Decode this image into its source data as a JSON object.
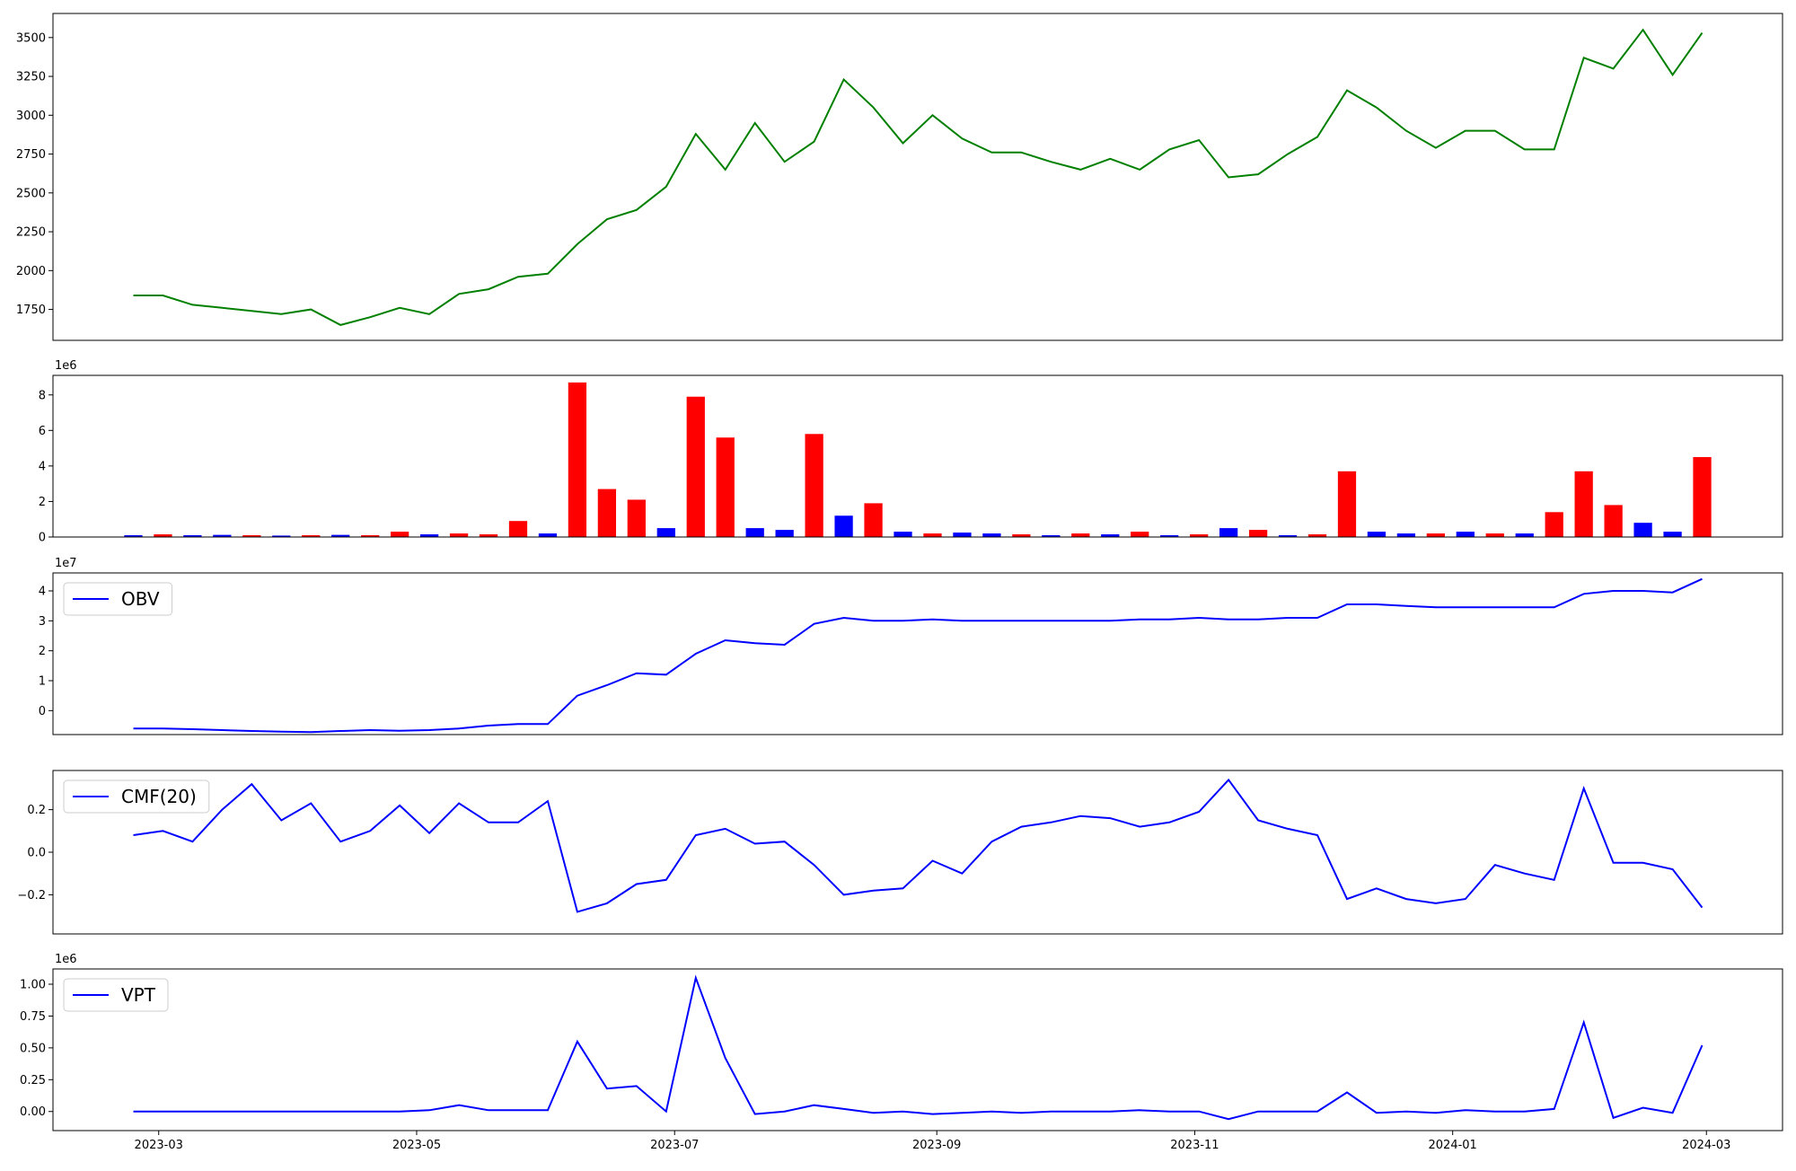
{
  "chart_data": [
    {
      "type": "line",
      "color": "green",
      "x": [
        "2023-02-23",
        "2023-03-02",
        "2023-03-09",
        "2023-03-16",
        "2023-03-23",
        "2023-03-30",
        "2023-04-06",
        "2023-04-13",
        "2023-04-20",
        "2023-04-27",
        "2023-05-04",
        "2023-05-11",
        "2023-05-18",
        "2023-05-25",
        "2023-06-01",
        "2023-06-08",
        "2023-06-15",
        "2023-06-22",
        "2023-06-29",
        "2023-07-06",
        "2023-07-13",
        "2023-07-20",
        "2023-07-27",
        "2023-08-03",
        "2023-08-10",
        "2023-08-17",
        "2023-08-24",
        "2023-08-31",
        "2023-09-07",
        "2023-09-14",
        "2023-09-21",
        "2023-09-28",
        "2023-10-05",
        "2023-10-12",
        "2023-10-19",
        "2023-10-26",
        "2023-11-02",
        "2023-11-09",
        "2023-11-16",
        "2023-11-23",
        "2023-11-30",
        "2023-12-07",
        "2023-12-14",
        "2023-12-21",
        "2023-12-28",
        "2024-01-04",
        "2024-01-11",
        "2024-01-18",
        "2024-01-25",
        "2024-02-01",
        "2024-02-08",
        "2024-02-15",
        "2024-02-22",
        "2024-02-29"
      ],
      "values": [
        1840,
        1840,
        1780,
        1760,
        1740,
        1720,
        1750,
        1650,
        1700,
        1760,
        1720,
        1850,
        1880,
        1960,
        1980,
        2170,
        2330,
        2390,
        2540,
        2880,
        2650,
        2950,
        2700,
        2830,
        3230,
        3050,
        2820,
        3000,
        2850,
        2760,
        2760,
        2700,
        2650,
        2720,
        2650,
        2780,
        2840,
        2600,
        2620,
        2750,
        2860,
        3160,
        3050,
        2900,
        2790,
        2900,
        2900,
        2780,
        2780,
        3370,
        3300,
        3550,
        3260,
        3530
      ],
      "xlim": [
        "2023-02-04",
        "2024-03-19"
      ],
      "ylim": [
        1551,
        3655
      ],
      "yticks": [
        1750,
        2000,
        2250,
        2500,
        2750,
        3000,
        3250,
        3500
      ]
    },
    {
      "type": "bar",
      "offset_text": "1e6",
      "x": [
        "2023-02-23",
        "2023-03-02",
        "2023-03-09",
        "2023-03-16",
        "2023-03-23",
        "2023-03-30",
        "2023-04-06",
        "2023-04-13",
        "2023-04-20",
        "2023-04-27",
        "2023-05-04",
        "2023-05-11",
        "2023-05-18",
        "2023-05-25",
        "2023-06-01",
        "2023-06-08",
        "2023-06-15",
        "2023-06-22",
        "2023-06-29",
        "2023-07-06",
        "2023-07-13",
        "2023-07-20",
        "2023-07-27",
        "2023-08-03",
        "2023-08-10",
        "2023-08-17",
        "2023-08-24",
        "2023-08-31",
        "2023-09-07",
        "2023-09-14",
        "2023-09-21",
        "2023-09-28",
        "2023-10-05",
        "2023-10-12",
        "2023-10-19",
        "2023-10-26",
        "2023-11-02",
        "2023-11-09",
        "2023-11-16",
        "2023-11-23",
        "2023-11-30",
        "2023-12-07",
        "2023-12-14",
        "2023-12-21",
        "2023-12-28",
        "2024-01-04",
        "2024-01-11",
        "2024-01-18",
        "2024-01-25",
        "2024-02-01",
        "2024-02-08",
        "2024-02-15",
        "2024-02-22",
        "2024-02-29"
      ],
      "values": [
        0.1,
        0.15,
        0.1,
        0.12,
        0.1,
        0.08,
        0.1,
        0.12,
        0.1,
        0.3,
        0.15,
        0.2,
        0.15,
        0.9,
        0.2,
        8.7,
        2.7,
        2.1,
        0.5,
        7.9,
        5.6,
        0.5,
        0.4,
        5.8,
        1.2,
        1.9,
        0.3,
        0.2,
        0.25,
        0.2,
        0.15,
        0.1,
        0.2,
        0.15,
        0.3,
        0.1,
        0.15,
        0.5,
        0.4,
        0.1,
        0.15,
        3.7,
        0.3,
        0.2,
        0.2,
        0.3,
        0.2,
        0.2,
        1.4,
        3.7,
        1.8,
        0.8,
        0.3,
        4.5
      ],
      "colors": [
        "blue",
        "red",
        "blue",
        "blue",
        "red",
        "blue",
        "red",
        "blue",
        "red",
        "red",
        "blue",
        "red",
        "red",
        "red",
        "blue",
        "red",
        "red",
        "red",
        "blue",
        "red",
        "red",
        "blue",
        "blue",
        "red",
        "blue",
        "red",
        "blue",
        "red",
        "blue",
        "blue",
        "red",
        "blue",
        "red",
        "blue",
        "red",
        "blue",
        "red",
        "blue",
        "red",
        "blue",
        "red",
        "red",
        "blue",
        "blue",
        "red",
        "blue",
        "red",
        "blue",
        "red",
        "red",
        "red",
        "blue",
        "blue",
        "red"
      ],
      "xlim": [
        "2023-02-04",
        "2024-03-19"
      ],
      "ylim": [
        0,
        9.1
      ],
      "yticks": [
        0,
        2,
        4,
        6,
        8
      ]
    },
    {
      "type": "line",
      "offset_text": "1e7",
      "legend": "upper left",
      "x": [
        "2023-02-23",
        "2023-03-02",
        "2023-03-09",
        "2023-03-16",
        "2023-03-23",
        "2023-03-30",
        "2023-04-06",
        "2023-04-13",
        "2023-04-20",
        "2023-04-27",
        "2023-05-04",
        "2023-05-11",
        "2023-05-18",
        "2023-05-25",
        "2023-06-01",
        "2023-06-08",
        "2023-06-15",
        "2023-06-22",
        "2023-06-29",
        "2023-07-06",
        "2023-07-13",
        "2023-07-20",
        "2023-07-27",
        "2023-08-03",
        "2023-08-10",
        "2023-08-17",
        "2023-08-24",
        "2023-08-31",
        "2023-09-07",
        "2023-09-14",
        "2023-09-21",
        "2023-09-28",
        "2023-10-05",
        "2023-10-12",
        "2023-10-19",
        "2023-10-26",
        "2023-11-02",
        "2023-11-09",
        "2023-11-16",
        "2023-11-23",
        "2023-11-30",
        "2023-12-07",
        "2023-12-14",
        "2023-12-21",
        "2023-12-28",
        "2024-01-04",
        "2024-01-11",
        "2024-01-18",
        "2024-01-25",
        "2024-02-01",
        "2024-02-08",
        "2024-02-15",
        "2024-02-22",
        "2024-02-29"
      ],
      "series": [
        {
          "name": "OBV",
          "color": "blue",
          "values": [
            -0.6,
            -0.6,
            -0.62,
            -0.65,
            -0.68,
            -0.7,
            -0.72,
            -0.68,
            -0.65,
            -0.67,
            -0.65,
            -0.6,
            -0.5,
            -0.45,
            -0.45,
            0.5,
            0.85,
            1.25,
            1.2,
            1.9,
            2.35,
            2.25,
            2.2,
            2.9,
            3.1,
            3.0,
            3.0,
            3.05,
            3.0,
            3.0,
            3.0,
            3.0,
            3.0,
            3.0,
            3.05,
            3.05,
            3.1,
            3.05,
            3.05,
            3.1,
            3.1,
            3.55,
            3.55,
            3.5,
            3.45,
            3.45,
            3.45,
            3.45,
            3.45,
            3.9,
            4.0,
            4.0,
            3.95,
            4.4
          ]
        }
      ],
      "xlim": [
        "2023-02-04",
        "2024-03-19"
      ],
      "ylim": [
        -0.8,
        4.6
      ],
      "yticks": [
        0,
        1,
        2,
        3,
        4
      ]
    },
    {
      "type": "line",
      "legend": "upper left",
      "x": [
        "2023-02-23",
        "2023-03-02",
        "2023-03-09",
        "2023-03-16",
        "2023-03-23",
        "2023-03-30",
        "2023-04-06",
        "2023-04-13",
        "2023-04-20",
        "2023-04-27",
        "2023-05-04",
        "2023-05-11",
        "2023-05-18",
        "2023-05-25",
        "2023-06-01",
        "2023-06-08",
        "2023-06-15",
        "2023-06-22",
        "2023-06-29",
        "2023-07-06",
        "2023-07-13",
        "2023-07-20",
        "2023-07-27",
        "2023-08-03",
        "2023-08-10",
        "2023-08-17",
        "2023-08-24",
        "2023-08-31",
        "2023-09-07",
        "2023-09-14",
        "2023-09-21",
        "2023-09-28",
        "2023-10-05",
        "2023-10-12",
        "2023-10-19",
        "2023-10-26",
        "2023-11-02",
        "2023-11-09",
        "2023-11-16",
        "2023-11-23",
        "2023-11-30",
        "2023-12-07",
        "2023-12-14",
        "2023-12-21",
        "2023-12-28",
        "2024-01-04",
        "2024-01-11",
        "2024-01-18",
        "2024-01-25",
        "2024-02-01",
        "2024-02-08",
        "2024-02-15",
        "2024-02-22",
        "2024-02-29"
      ],
      "series": [
        {
          "name": "CMF(20)",
          "color": "blue",
          "values": [
            0.08,
            0.1,
            0.05,
            0.2,
            0.32,
            0.15,
            0.23,
            0.05,
            0.1,
            0.22,
            0.09,
            0.23,
            0.14,
            0.14,
            0.24,
            -0.28,
            -0.24,
            -0.15,
            -0.13,
            0.08,
            0.11,
            0.04,
            0.05,
            -0.06,
            -0.2,
            -0.18,
            -0.17,
            -0.04,
            -0.1,
            0.05,
            0.12,
            0.14,
            0.17,
            0.16,
            0.12,
            0.14,
            0.19,
            0.34,
            0.15,
            0.11,
            0.08,
            -0.22,
            -0.17,
            -0.22,
            -0.24,
            -0.22,
            -0.06,
            -0.1,
            -0.13,
            0.3,
            -0.05,
            -0.05,
            -0.08,
            -0.26
          ]
        }
      ],
      "xlim": [
        "2023-02-04",
        "2024-03-19"
      ],
      "ylim": [
        -0.384,
        0.384
      ],
      "yticks": [
        {
          "value": -0.2,
          "label": "−0.2"
        },
        {
          "value": 0,
          "label": "0.0"
        },
        0.2
      ]
    },
    {
      "type": "line",
      "offset_text": "1e6",
      "legend": "upper left",
      "x": [
        "2023-02-23",
        "2023-03-02",
        "2023-03-09",
        "2023-03-16",
        "2023-03-23",
        "2023-03-30",
        "2023-04-06",
        "2023-04-13",
        "2023-04-20",
        "2023-04-27",
        "2023-05-04",
        "2023-05-11",
        "2023-05-18",
        "2023-05-25",
        "2023-06-01",
        "2023-06-08",
        "2023-06-15",
        "2023-06-22",
        "2023-06-29",
        "2023-07-06",
        "2023-07-13",
        "2023-07-20",
        "2023-07-27",
        "2023-08-03",
        "2023-08-10",
        "2023-08-17",
        "2023-08-24",
        "2023-08-31",
        "2023-09-07",
        "2023-09-14",
        "2023-09-21",
        "2023-09-28",
        "2023-10-05",
        "2023-10-12",
        "2023-10-19",
        "2023-10-26",
        "2023-11-02",
        "2023-11-09",
        "2023-11-16",
        "2023-11-23",
        "2023-11-30",
        "2023-12-07",
        "2023-12-14",
        "2023-12-21",
        "2023-12-28",
        "2024-01-04",
        "2024-01-11",
        "2024-01-18",
        "2024-01-25",
        "2024-02-01",
        "2024-02-08",
        "2024-02-15",
        "2024-02-22",
        "2024-02-29"
      ],
      "series": [
        {
          "name": "VPT",
          "color": "blue",
          "values": [
            0,
            0,
            0,
            0,
            0,
            0,
            0,
            0,
            0,
            0,
            0.01,
            0.05,
            0.01,
            0.01,
            0.01,
            0.55,
            0.18,
            0.2,
            0,
            1.05,
            0.42,
            -0.02,
            0,
            0.05,
            0.02,
            -0.01,
            0,
            -0.02,
            -0.01,
            0,
            -0.01,
            0,
            0,
            0,
            0.01,
            0,
            0,
            -0.06,
            0,
            0,
            0,
            0.15,
            -0.01,
            0,
            -0.01,
            0.01,
            0,
            0,
            0.02,
            0.7,
            -0.05,
            0.03,
            -0.01,
            0.52
          ]
        }
      ],
      "xlim": [
        "2023-02-04",
        "2024-03-19"
      ],
      "ylim": [
        -0.15,
        1.12
      ],
      "yticks": [
        {
          "value": 0,
          "label": "0.00"
        },
        {
          "value": 0.25,
          "label": "0.25"
        },
        {
          "value": 0.5,
          "label": "0.50"
        },
        {
          "value": 0.75,
          "label": "0.75"
        },
        {
          "value": 1,
          "label": "1.00"
        }
      ],
      "xticks": [
        "2023-03",
        "2023-05",
        "2023-07",
        "2023-09",
        "2023-11",
        "2024-01",
        "2024-03"
      ]
    }
  ]
}
